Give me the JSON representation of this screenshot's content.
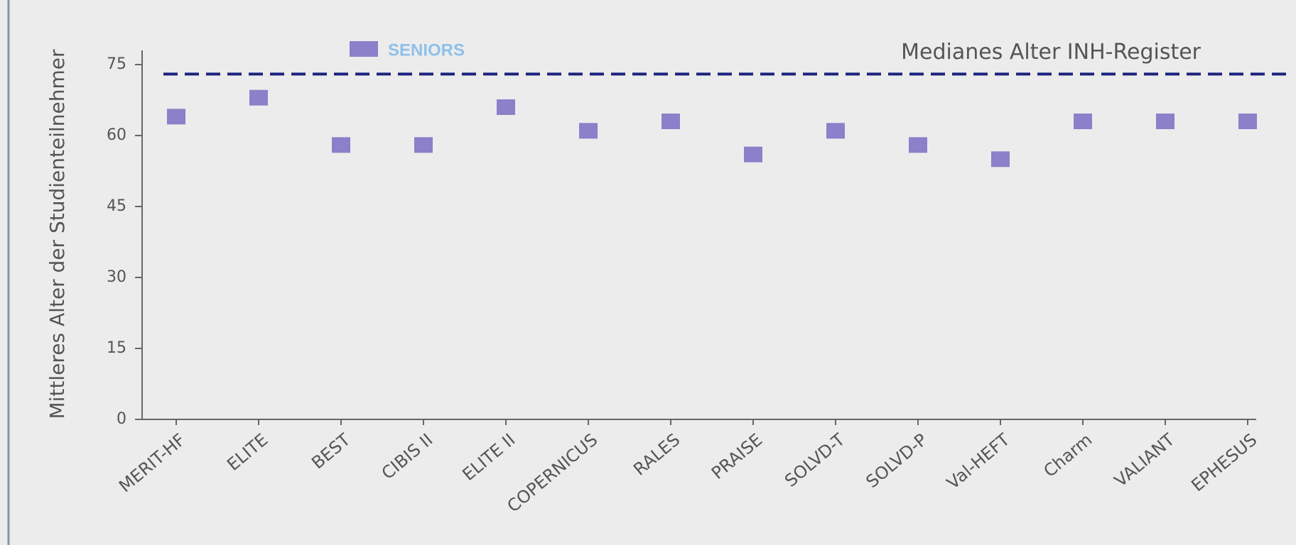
{
  "chart_data": {
    "type": "scatter",
    "y_label": "Mittleres Alter der Studienteilnehmer",
    "categories": [
      "MERIT-HF",
      "ELITE",
      "BEST",
      "CIBIS II",
      "ELITE II",
      "COPERNICUS",
      "RALES",
      "PRAISE",
      "SOLVD-T",
      "SOLVD-P",
      "Val-HEFT",
      "Charm",
      "VALIANT",
      "EPHESUS"
    ],
    "series": [
      {
        "name": "SENIORS",
        "color": "#8b80c9",
        "values": [
          64,
          68,
          58,
          58,
          66,
          61,
          63,
          56,
          61,
          58,
          55,
          63,
          63,
          63
        ]
      }
    ],
    "reference_line": {
      "label": "Medianes Alter INH-Register",
      "value": 73,
      "color": "#1a237e"
    },
    "ylim": [
      0,
      75
    ],
    "yticks": [
      0,
      15,
      30,
      45,
      60,
      75
    ]
  }
}
